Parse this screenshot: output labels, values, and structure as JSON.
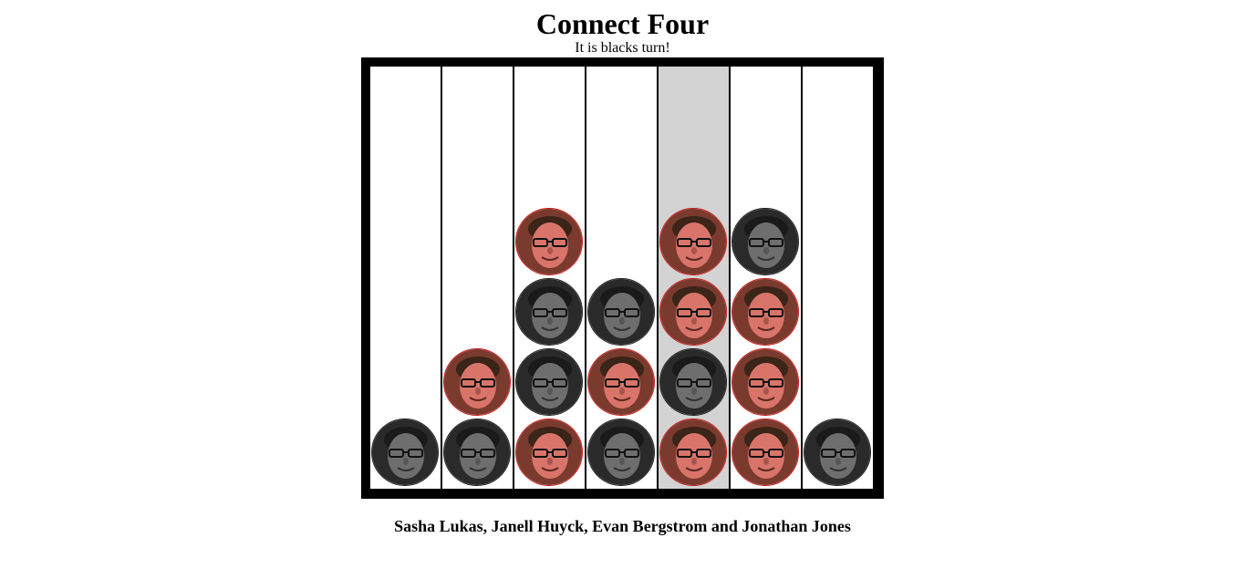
{
  "title": "Connect Four",
  "status": "It is blacks turn!",
  "credits": "Sasha Lukas, Janell Huyck, Evan Bergstrom and Jonathan Jones",
  "board": {
    "columns": 7,
    "rows": 6,
    "highlighted_column": 4,
    "pieces_bottom_up": [
      [
        "black"
      ],
      [
        "black",
        "red"
      ],
      [
        "red",
        "black",
        "black",
        "red"
      ],
      [
        "black",
        "red",
        "black"
      ],
      [
        "red",
        "black",
        "red",
        "red"
      ],
      [
        "red",
        "red",
        "red",
        "black"
      ],
      [
        "black"
      ]
    ]
  },
  "colors": {
    "board_frame": "#000000",
    "column_bg": "#ffffff",
    "column_highlight": "#d3d3d3",
    "red_piece_border": "#cc1a1a",
    "red_piece_skin": "#d9746a",
    "black_piece_skin": "#6e6e6e"
  },
  "icons": {
    "red": "red-face-piece-icon",
    "black": "black-face-piece-icon"
  }
}
